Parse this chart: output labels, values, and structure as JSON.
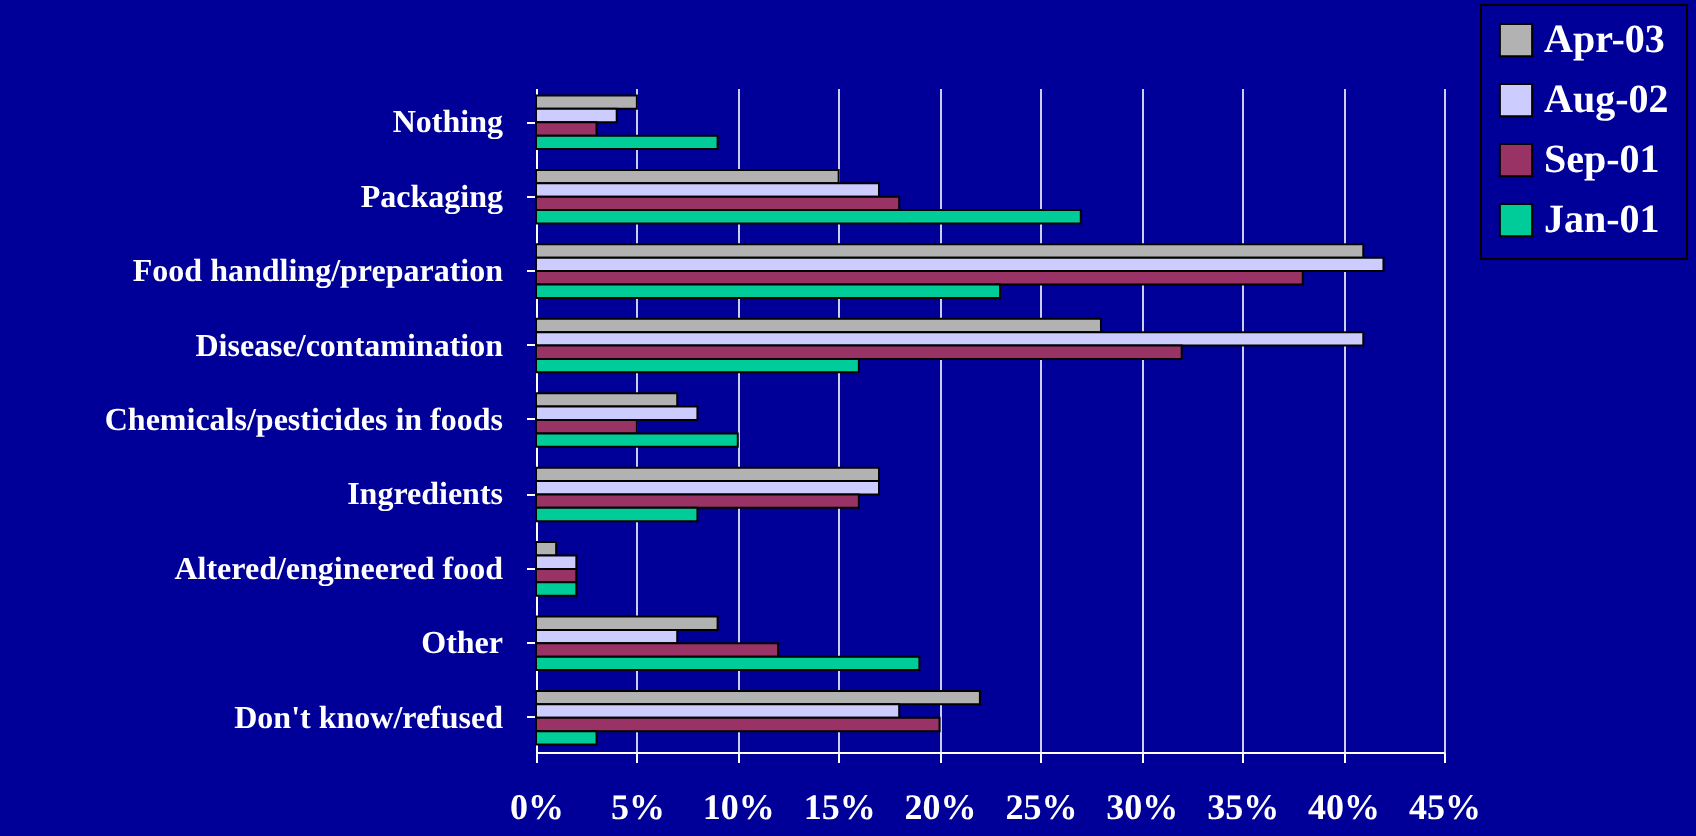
{
  "chart_data": {
    "type": "bar",
    "orientation": "horizontal",
    "categories": [
      "Nothing",
      "Packaging",
      "Food handling/preparation",
      "Disease/contamination",
      "Chemicals/pesticides in foods",
      "Ingredients",
      "Altered/engineered food",
      "Other",
      "Don't know/refused"
    ],
    "series": [
      {
        "name": "Apr-03",
        "color": "#b2b2b2",
        "values": [
          5,
          15,
          41,
          28,
          7,
          17,
          1,
          9,
          22
        ]
      },
      {
        "name": "Aug-02",
        "color": "#ccccff",
        "values": [
          4,
          17,
          42,
          41,
          8,
          17,
          2,
          7,
          18
        ]
      },
      {
        "name": "Sep-01",
        "color": "#993366",
        "values": [
          3,
          18,
          38,
          32,
          5,
          16,
          2,
          12,
          20
        ]
      },
      {
        "name": "Jan-01",
        "color": "#00cc99",
        "values": [
          9,
          27,
          23,
          16,
          10,
          8,
          2,
          19,
          3
        ]
      }
    ],
    "xlim": [
      0,
      45
    ],
    "xticks": [
      {
        "value": 0,
        "label": "0%"
      },
      {
        "value": 5,
        "label": "5%"
      },
      {
        "value": 10,
        "label": "10%"
      },
      {
        "value": 15,
        "label": "15%"
      },
      {
        "value": 20,
        "label": "20%"
      },
      {
        "value": 25,
        "label": "25%"
      },
      {
        "value": 30,
        "label": "30%"
      },
      {
        "value": 35,
        "label": "35%"
      },
      {
        "value": 40,
        "label": "40%"
      },
      {
        "value": 45,
        "label": "45%"
      }
    ],
    "grid": "x",
    "legend": "top right"
  }
}
